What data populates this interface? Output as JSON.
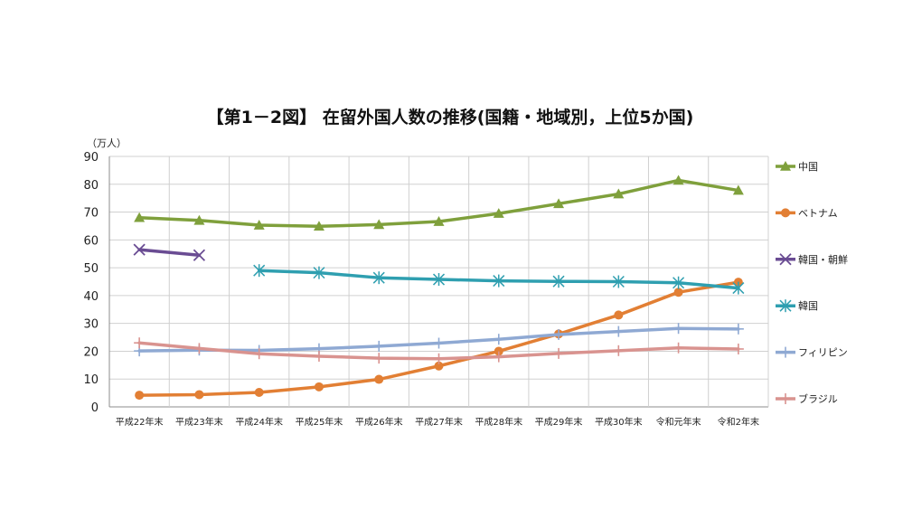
{
  "chart_data": {
    "type": "line",
    "title": "【第1－2図】 在留外国人数の推移(国籍・地域別，上位5か国)",
    "ylabel": "（万人）",
    "xlabel": "",
    "ylim": [
      0,
      90
    ],
    "yticks": [
      0,
      10,
      20,
      30,
      40,
      50,
      60,
      70,
      80,
      90
    ],
    "grid": true,
    "legend_position": "right",
    "categories": [
      "平成22年末",
      "平成23年末",
      "平成24年末",
      "平成25年末",
      "平成26年末",
      "平成27年末",
      "平成28年末",
      "平成29年末",
      "平成30年末",
      "令和元年末",
      "令和2年末"
    ],
    "series": [
      {
        "name": "中国",
        "color": "#7fa03c",
        "marker": "triangle",
        "values": [
          68,
          67,
          65.3,
          64.9,
          65.5,
          66.6,
          69.5,
          73,
          76.5,
          81.4,
          77.8
        ]
      },
      {
        "name": "ベトナム",
        "color": "#e27f34",
        "marker": "circle",
        "values": [
          4.2,
          4.4,
          5.2,
          7.2,
          9.9,
          14.7,
          20,
          26.2,
          33,
          41.2,
          44.8
        ]
      },
      {
        "name": "韓国・朝鮮",
        "color": "#6a4c93",
        "marker": "x",
        "values": [
          56.5,
          54.5,
          null,
          null,
          null,
          null,
          null,
          null,
          null,
          null,
          null
        ]
      },
      {
        "name": "韓国",
        "color": "#2f9fb0",
        "marker": "asterisk",
        "values": [
          null,
          null,
          49,
          48.2,
          46.4,
          45.8,
          45.3,
          45.1,
          45,
          44.6,
          42.7
        ]
      },
      {
        "name": "フィリピン",
        "color": "#8fa9d3",
        "marker": "plus",
        "values": [
          20.1,
          20.4,
          20.3,
          20.9,
          21.8,
          22.9,
          24.3,
          26,
          27.1,
          28.2,
          28
        ]
      },
      {
        "name": "ブラジル",
        "color": "#d9938f",
        "marker": "plus",
        "values": [
          23,
          21,
          19.1,
          18.2,
          17.5,
          17.3,
          18,
          19.2,
          20.2,
          21.2,
          20.8
        ]
      }
    ]
  }
}
